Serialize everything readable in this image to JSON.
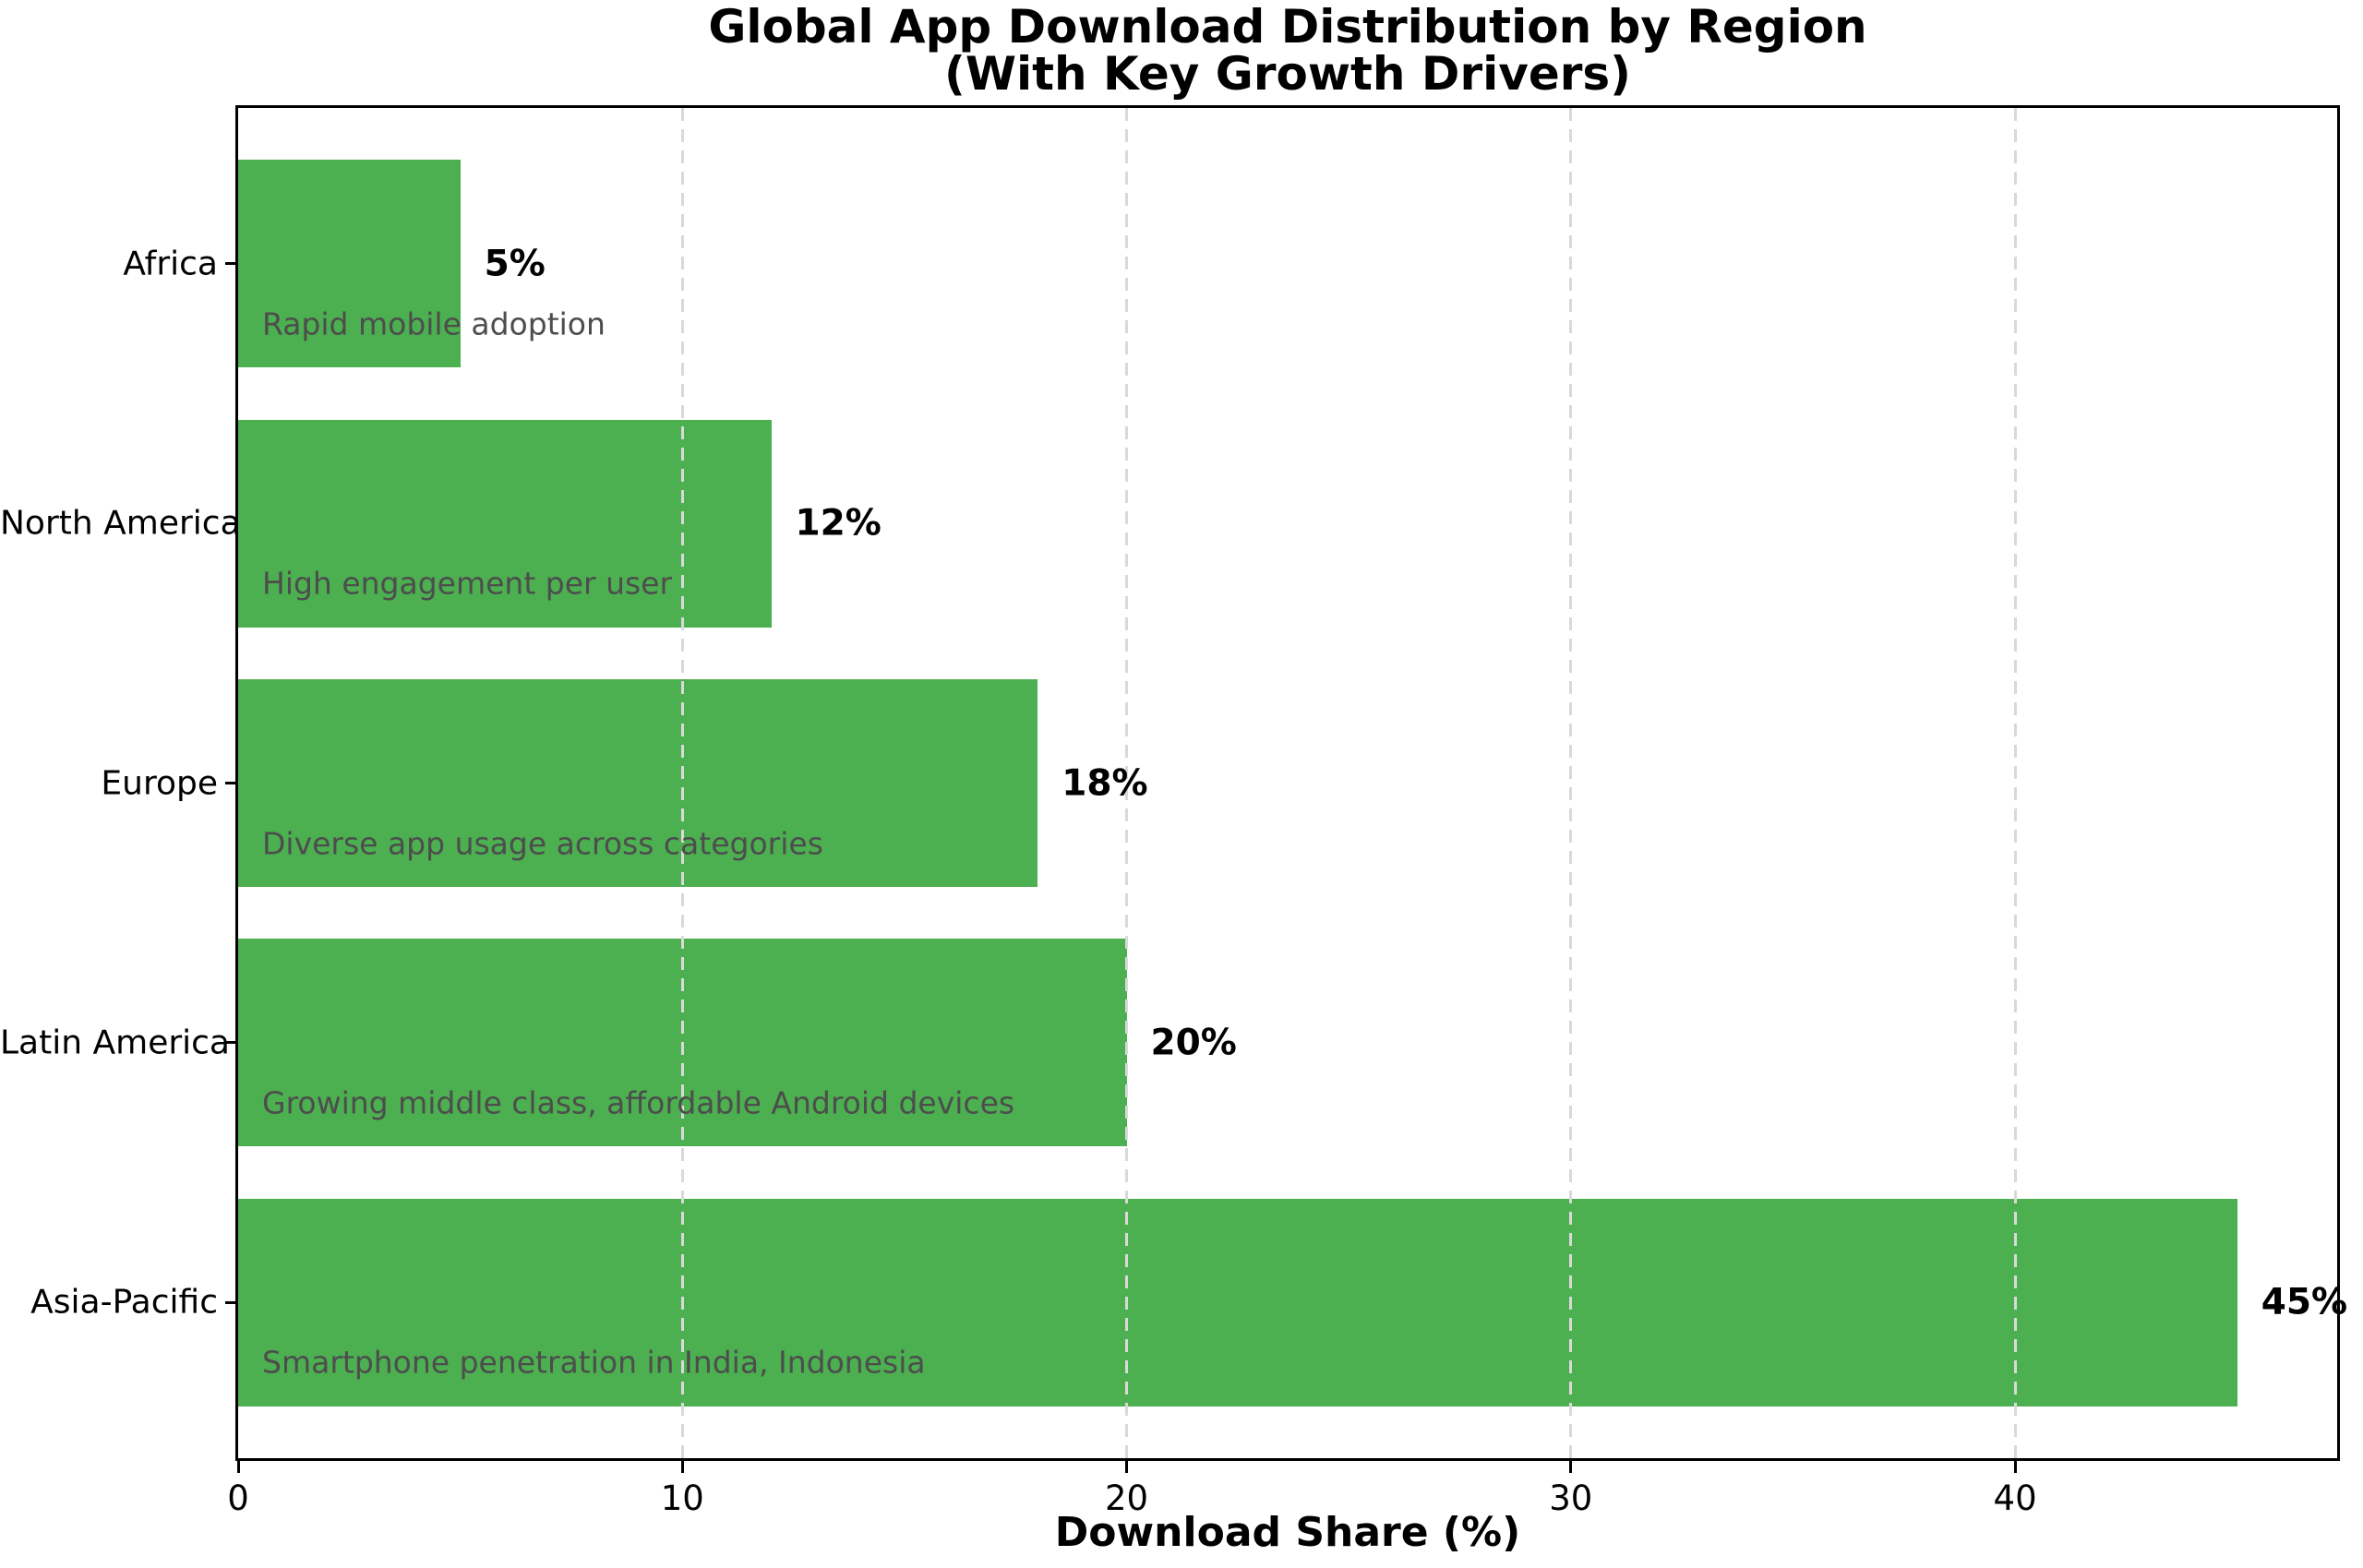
{
  "title": {
    "line1": "Global App Download Distribution by Region",
    "line2": "(With Key Growth Drivers)"
  },
  "chart_data": {
    "type": "bar",
    "orientation": "horizontal",
    "title": "Global App Download Distribution by Region (With Key Growth Drivers)",
    "xlabel": "Download Share (%)",
    "categories": [
      "Africa",
      "North America",
      "Europe",
      "Latin America",
      "Asia-Pacific"
    ],
    "values": [
      5,
      12,
      18,
      20,
      45
    ],
    "value_labels": [
      "5%",
      "12%",
      "18%",
      "20%",
      "45%"
    ],
    "growth_drivers": [
      "Rapid mobile adoption",
      "High engagement per user",
      "Diverse app usage across categories",
      "Growing middle class, affordable Android devices",
      "Smartphone penetration in India, Indonesia"
    ],
    "xticks": [
      0,
      10,
      20,
      30,
      40
    ],
    "xlim": [
      0,
      47.25
    ],
    "grid": {
      "axis": "x",
      "style": "dashed",
      "color": "#d9d9d9"
    },
    "legend": "none",
    "bar_color": "#4CAF50",
    "annotation_color": "#4d4d4d",
    "bar_height_fraction": 0.8,
    "category_order": "top-to-bottom"
  }
}
